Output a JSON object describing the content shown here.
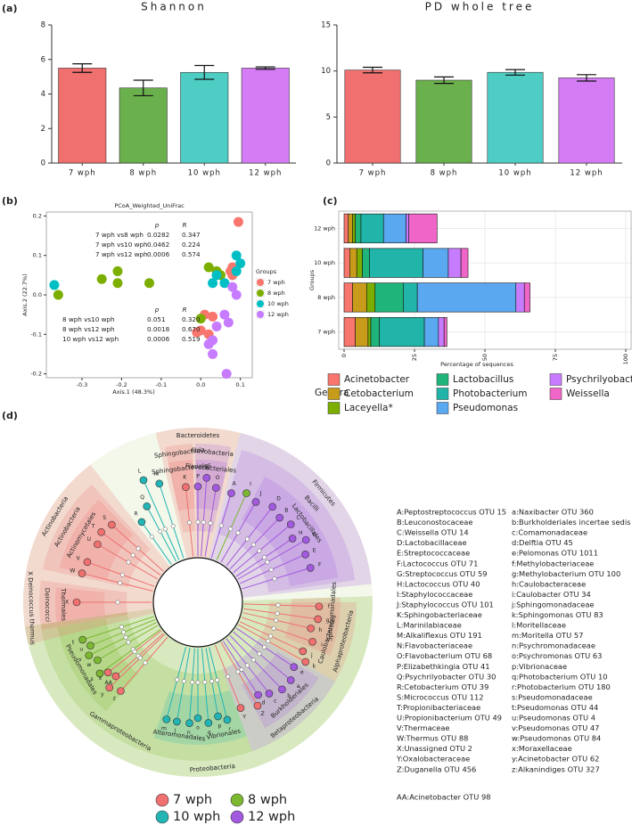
{
  "panel_labels": [
    "(a)",
    "(b)",
    "(c)",
    "(d)"
  ],
  "chart_data": [
    {
      "type": "bar",
      "title": "Shannon",
      "categories": [
        "7 wph",
        "8 wph",
        "10 wph",
        "12 wph"
      ],
      "values": [
        5.5,
        4.35,
        5.25,
        5.5
      ],
      "errors": [
        0.25,
        0.45,
        0.4,
        0.07
      ],
      "colors": [
        "#f07070",
        "#6ab04c",
        "#4ecdc4",
        "#d57cf5"
      ],
      "ylim": [
        0,
        8
      ],
      "yticks": [
        0,
        2,
        4,
        6,
        8
      ]
    },
    {
      "type": "bar",
      "title": "PD whole tree",
      "categories": [
        "7 wph",
        "8 wph",
        "10 wph",
        "12 wph"
      ],
      "values": [
        10.1,
        9.0,
        9.85,
        9.25
      ],
      "errors": [
        0.3,
        0.35,
        0.3,
        0.35
      ],
      "colors": [
        "#f07070",
        "#6ab04c",
        "#4ecdc4",
        "#d57cf5"
      ],
      "ylim": [
        0,
        15
      ],
      "yticks": [
        0,
        5,
        10,
        15
      ]
    },
    {
      "type": "scatter",
      "title": "PCoA_Weighted_UniFrac",
      "x_label": "Axis.1 (48.3%)",
      "y_label": "Axis.2 (22.7%)",
      "xlim": [
        -0.39,
        0.13
      ],
      "ylim": [
        -0.21,
        0.21
      ],
      "xticks": [
        -0.3,
        -0.2,
        -0.1,
        {
          "value": 0,
          "label": "0.0"
        },
        0.1
      ],
      "yticks": [
        -0.2,
        -0.1,
        {
          "value": 0,
          "label": "0.0"
        },
        0.1,
        0.2
      ],
      "legend_title": "Groups",
      "series": [
        {
          "name": "7 wph",
          "color": "#f8766d",
          "x": [
            0.095,
            0.08,
            0.075,
            0.08,
            0.01,
            0.03,
            0.0,
            -0.01,
            0.02
          ],
          "values": [
            0.185,
            0.07,
            0.06,
            0.05,
            -0.05,
            -0.055,
            -0.09,
            -0.095,
            -0.1
          ]
        },
        {
          "name": "8 wph",
          "color": "#7cae00",
          "x": [
            -0.36,
            -0.21,
            -0.25,
            -0.21,
            -0.13,
            0.02,
            0.04,
            0.05,
            0.0
          ],
          "values": [
            0.0,
            0.06,
            0.04,
            0.03,
            0.03,
            0.07,
            0.06,
            0.05,
            -0.06
          ]
        },
        {
          "name": "10 wph",
          "color": "#00bfc4",
          "x": [
            -0.37,
            0.09,
            0.1,
            0.06,
            0.04,
            0.03,
            0.09
          ],
          "values": [
            0.025,
            0.1,
            0.08,
            0.03,
            0.05,
            0.03,
            0.06
          ]
        },
        {
          "name": "12 wph",
          "color": "#c77cff",
          "x": [
            0.08,
            0.09,
            0.06,
            0.04,
            0.03,
            0.02,
            0.03,
            0.07,
            0.065
          ],
          "values": [
            0.02,
            0.0,
            -0.05,
            -0.08,
            -0.115,
            -0.125,
            -0.15,
            -0.07,
            -0.2
          ]
        }
      ],
      "annotations": [
        {
          "columns": [
            "p",
            "R"
          ],
          "rows": [
            [
              "7 wph vs8 wph",
              "0.0282",
              "0.347"
            ],
            [
              "7 wph vs10 wph",
              "0.0462",
              "0.224"
            ],
            [
              "7 wph vs12 wph",
              "0.0006",
              "0.574"
            ]
          ]
        },
        {
          "columns": [
            "p",
            "R"
          ],
          "rows": [
            [
              "8 wph vs10 wph",
              "0.051",
              "0.320"
            ],
            [
              "8 wph vs12 wph",
              "0.0018",
              "0.670"
            ],
            [
              "10 wph vs12 wph",
              "0.0006",
              "0.519"
            ]
          ]
        }
      ]
    },
    {
      "type": "barh",
      "x_label": "Percentage of sequences",
      "y_label": "Groups",
      "legend_title": "Genera",
      "categories": [
        "7 wph",
        "8 wph",
        "10 wph",
        "12 wph"
      ],
      "xlim": [
        -1.9,
        101.9
      ],
      "xticks": [
        0,
        25,
        50,
        75,
        100
      ],
      "grid": true,
      "series": [
        {
          "name": "Acinetobacter",
          "color": "#f8766d",
          "values": [
            4,
            3,
            2,
            1.5
          ]
        },
        {
          "name": "Cetobacterium",
          "color": "#c99b1a",
          "values": [
            4.5,
            5,
            2.5,
            1.5
          ]
        },
        {
          "name": "Laceyella*",
          "color": "#7cae00",
          "values": [
            1,
            3,
            2,
            1
          ]
        },
        {
          "name": "Lactobacillus",
          "color": "#1fb57a",
          "values": [
            3,
            10,
            2.5,
            2
          ]
        },
        {
          "name": "Photobacterium",
          "color": "#20b5a8",
          "values": [
            16,
            5,
            19,
            8
          ]
        },
        {
          "name": "Pseudomonas",
          "color": "#5aa8f0",
          "values": [
            5,
            35,
            9,
            8
          ]
        },
        {
          "name": "Psychrilyobacter",
          "color": "#c77cff",
          "values": [
            2,
            3,
            4.5,
            1
          ]
        },
        {
          "name": "Weissella",
          "color": "#f066c8",
          "values": [
            1,
            2,
            2.5,
            10
          ]
        }
      ]
    }
  ],
  "cladogram": {
    "clades": [
      {
        "name": "Proteobacteria",
        "color": "#7cb82f"
      },
      {
        "name": "Gammaproteobacteria",
        "color": "#7cb82f"
      },
      {
        "name": "Pseudomonadales",
        "color": "#7cb82f"
      },
      {
        "name": "Alteromonadales",
        "color": "#22b5b5"
      },
      {
        "name": "Vibrionales",
        "color": "#22b5b5"
      },
      {
        "name": "Betaproteobacteria",
        "color": "#a259e0"
      },
      {
        "name": "Burkholderiales",
        "color": "#a259e0"
      },
      {
        "name": "Alphaproteobacteria",
        "color": "#f07070"
      },
      {
        "name": "Caulobacterales",
        "color": "#f07070"
      },
      {
        "name": "Sphingomonadales",
        "color": "#f07070"
      },
      {
        "name": "Firmicutes",
        "color": "#a259e0"
      },
      {
        "name": "Bacilli",
        "color": "#a259e0"
      },
      {
        "name": "Lactobacillales",
        "color": "#a259e0"
      },
      {
        "name": "Bacteroidetes",
        "color": "#f07070"
      },
      {
        "name": "Sphingobacteria",
        "color": "#f07070"
      },
      {
        "name": "Flavobacteria",
        "color": "#a259e0"
      },
      {
        "name": "Sphingobacteriales",
        "color": "#f07070"
      },
      {
        "name": "Flavobacteriales",
        "color": "#a259e0"
      },
      {
        "name": "Actinobacteria",
        "color": "#f07070"
      },
      {
        "name": "Actinobacteria",
        "color": "#f07070"
      },
      {
        "name": "Actinomycetales",
        "color": "#f07070"
      },
      {
        "name": "X Deinococcus thermus",
        "color": "#f07070"
      },
      {
        "name": "Deinococci",
        "color": "#f07070"
      },
      {
        "name": "Thermales",
        "color": "#f07070"
      }
    ],
    "nodes": [
      {
        "label": "A",
        "color": "#a259e0"
      },
      {
        "label": "B",
        "color": "#a259e0"
      },
      {
        "label": "C",
        "color": "#a259e0"
      },
      {
        "label": "D",
        "color": "#a259e0"
      },
      {
        "label": "E",
        "color": "#a259e0"
      },
      {
        "label": "F",
        "color": "#a259e0"
      },
      {
        "label": "G",
        "color": "#a259e0"
      },
      {
        "label": "H",
        "color": "#a259e0"
      },
      {
        "label": "I",
        "color": "#7cb82f"
      },
      {
        "label": "J",
        "color": "#a259e0"
      },
      {
        "label": "K",
        "color": "#f07070"
      },
      {
        "label": "L",
        "color": "#22b5b5"
      },
      {
        "label": "M",
        "color": "#22b5b5"
      },
      {
        "label": "N",
        "color": "#a259e0"
      },
      {
        "label": "O",
        "color": "#a259e0"
      },
      {
        "label": "P",
        "color": "#a259e0"
      },
      {
        "label": "Q",
        "color": "#22b5b5"
      },
      {
        "label": "R",
        "color": "#22b5b5"
      },
      {
        "label": "S",
        "color": "#f07070"
      },
      {
        "label": "T",
        "color": "#f07070"
      },
      {
        "label": "U",
        "color": "#f07070"
      },
      {
        "label": "V",
        "color": "#f07070"
      },
      {
        "label": "W",
        "color": "#f07070"
      },
      {
        "label": "X",
        "color": "#f07070"
      },
      {
        "label": "Y",
        "color": "#f07070"
      },
      {
        "label": "Z",
        "color": "#f07070"
      },
      {
        "label": "AA",
        "color": "#f07070"
      },
      {
        "label": "a",
        "color": "#a259e0"
      },
      {
        "label": "b",
        "color": "#a259e0"
      },
      {
        "label": "c",
        "color": "#a259e0"
      },
      {
        "label": "d",
        "color": "#a259e0"
      },
      {
        "label": "e",
        "color": "#a259e0"
      },
      {
        "label": "f",
        "color": "#f07070"
      },
      {
        "label": "g",
        "color": "#f07070"
      },
      {
        "label": "h",
        "color": "#f07070"
      },
      {
        "label": "i",
        "color": "#f07070"
      },
      {
        "label": "j",
        "color": "#f07070"
      },
      {
        "label": "k",
        "color": "#f07070"
      },
      {
        "label": "l",
        "color": "#22b5b5"
      },
      {
        "label": "m",
        "color": "#22b5b5"
      },
      {
        "label": "n",
        "color": "#22b5b5"
      },
      {
        "label": "o",
        "color": "#22b5b5"
      },
      {
        "label": "p",
        "color": "#22b5b5"
      },
      {
        "label": "q",
        "color": "#22b5b5"
      },
      {
        "label": "r",
        "color": "#22b5b5"
      },
      {
        "label": "s",
        "color": "#7cb82f"
      },
      {
        "label": "t",
        "color": "#7cb82f"
      },
      {
        "label": "u",
        "color": "#7cb82f"
      },
      {
        "label": "v",
        "color": "#7cb82f"
      },
      {
        "label": "w",
        "color": "#7cb82f"
      },
      {
        "label": "x",
        "color": "#f07070"
      },
      {
        "label": "y",
        "color": "#f07070"
      },
      {
        "label": "z",
        "color": "#f07070"
      }
    ],
    "key_upper": [
      "A:Peptostreptococcus OTU 15",
      "B:Leuconostocaceae",
      "C:Weissella OTU 14",
      "D:Lactobacillaceae",
      "E:Streptococcaceae",
      "F:Lactococcus OTU 71",
      "G:Streptococcus OTU 59",
      "H:Lactococcus OTU 40",
      "I:Staphylococcaceae",
      "J:Staphylococcus OTU 101",
      "K:Sphingobacteriaceae",
      "L:Marinilabiaceae",
      "M:Alkaliflexus OTU 191",
      "N:Flavobacteriaceae",
      "O:Flavobacterium OTU 68",
      "P:Elizabethkingia OTU 41",
      "Q:Psychrilyobacter OTU 30",
      "R:Cetobacterium OTU 39",
      "S:Micrococcus OTU 112",
      "T:Propionibacteriaceae",
      "U:Propionibacterium OTU 49",
      "V:Thermaceae",
      "W:Thermus OTU 88",
      "X:Unassigned OTU 2",
      "Y:Oxalobacteraceae",
      "Z:Duganella OTU 456"
    ],
    "key_extra": "AA:Acinetobacter OTU 98",
    "key_lower": [
      "a:Naxibacter OTU 360",
      "b:Burkholderiales incertae sedis",
      "c:Comamonadaceae",
      "d:Delftia OTU 45",
      "e:Pelomonas OTU 1011",
      "f:Methylobacteriaceae",
      "g:Methylobacterium OTU 100",
      "h:Caulobacteraceae",
      "i:Caulobacter OTU 34",
      "j:Sphingomonadaceae",
      "k:Sphingomonas OTU 83",
      "l:Moritellaceae",
      "m:Moritella OTU 57",
      "n:Psychromonadaceae",
      "o:Psychromonas OTU 63",
      "p:Vibrionaceae",
      "q:Photobacterium OTU 10",
      "r:Photobacterium OTU 180",
      "s:Pseudomonadaceae",
      "t:Pseudomonas OTU 44",
      "u:Pseudomonas OTU 4",
      "v:Pseudomonas OTU 47",
      "w:Pseudomonas OTU 84",
      "x:Moraxellaceae",
      "y:Acinetobacter OTU 62",
      "z:Alkanindiges OTU 327"
    ],
    "groups": [
      {
        "name": "7 wph",
        "color": "#f07070"
      },
      {
        "name": "8 wph",
        "color": "#7cb82f"
      },
      {
        "name": "10 wph",
        "color": "#22b5b5"
      },
      {
        "name": "12 wph",
        "color": "#a259e0"
      }
    ]
  }
}
